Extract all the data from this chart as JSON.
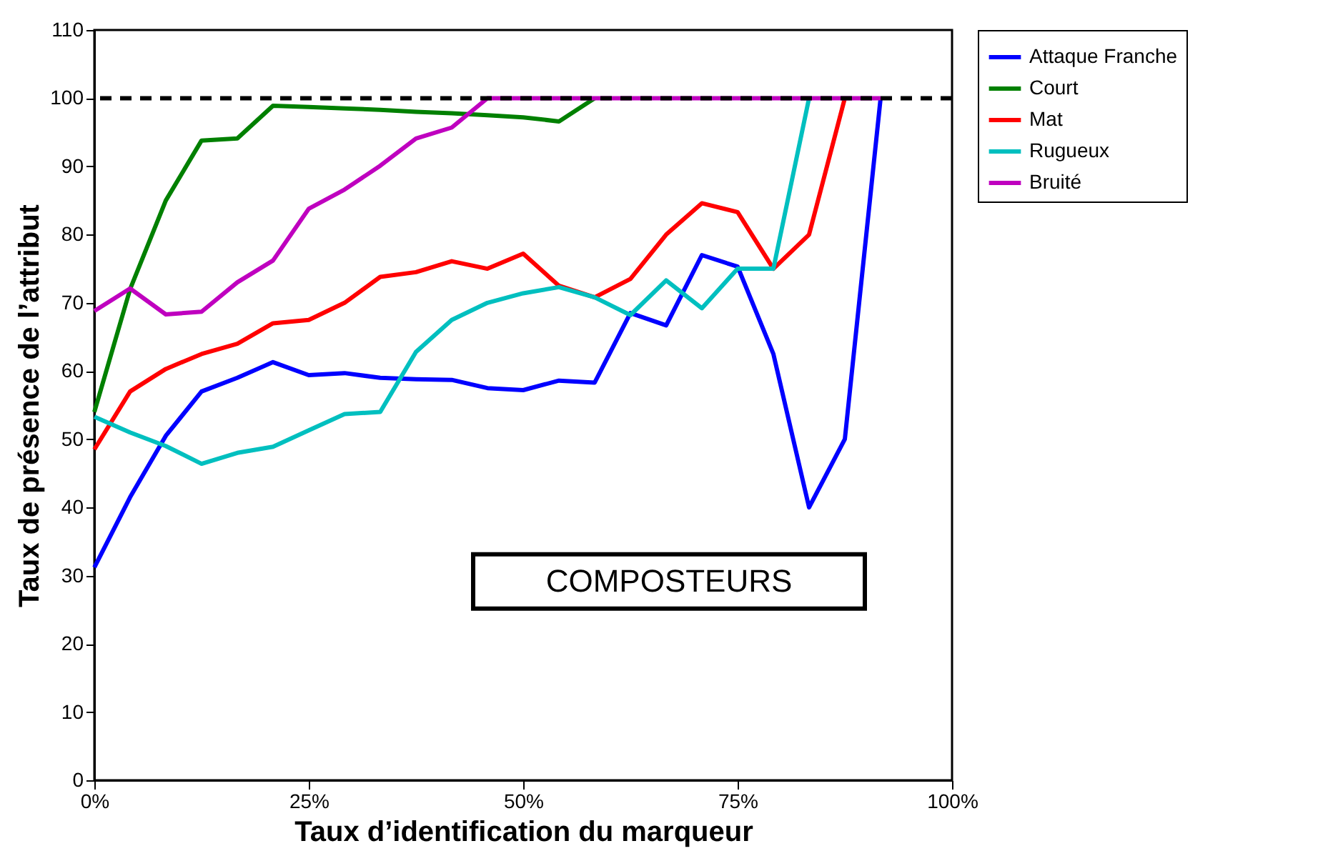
{
  "chart_data": {
    "type": "line",
    "xlabel": "Taux d’identification du marqueur",
    "ylabel": "Taux de présence de l’attribut",
    "x": [
      0,
      4.17,
      8.33,
      12.5,
      16.67,
      20.83,
      25,
      29.17,
      33.33,
      37.5,
      41.67,
      45.83,
      50,
      54.17,
      58.33,
      62.5,
      66.67,
      70.83,
      75,
      79.17,
      83.33,
      87.5,
      91.67
    ],
    "series": [
      {
        "name": "Attaque Franche",
        "color": "#0000ff",
        "values": [
          31.2,
          41.5,
          50.5,
          57,
          59,
          61.3,
          59.4,
          59.7,
          59,
          58.8,
          58.7,
          57.5,
          57.2,
          58.6,
          58.3,
          68.5,
          66.7,
          77,
          75.3,
          62.5,
          40,
          50,
          100
        ]
      },
      {
        "name": "Court",
        "color": "#008000",
        "values": [
          54,
          72,
          85,
          93.8,
          94.1,
          98.9,
          98.7,
          98.5,
          98.3,
          98,
          97.8,
          97.5,
          97.2,
          96.6,
          100,
          null,
          null,
          null,
          null,
          null,
          null,
          null,
          null
        ]
      },
      {
        "name": "Mat",
        "color": "#ff0000",
        "values": [
          48.5,
          57,
          60.3,
          62.5,
          64,
          67,
          67.5,
          70,
          73.8,
          74.5,
          76.1,
          75,
          77.2,
          72.5,
          70.8,
          73.5,
          80,
          84.6,
          83.3,
          75,
          80,
          100,
          null
        ]
      },
      {
        "name": "Rugueux",
        "color": "#00bfbf",
        "values": [
          53.3,
          51,
          49,
          46.4,
          48,
          48.9,
          51.3,
          53.7,
          54,
          62.8,
          67.5,
          70,
          71.4,
          72.3,
          70.8,
          68.2,
          73.3,
          69.2,
          75,
          75,
          100,
          null,
          null
        ]
      },
      {
        "name": "Bruité",
        "color": "#bf00bf",
        "values": [
          68.8,
          72.1,
          68.3,
          68.7,
          73,
          76.2,
          83.8,
          86.6,
          90.1,
          94.1,
          95.7,
          100,
          100,
          100,
          100,
          100,
          100,
          100,
          100,
          100,
          100,
          100,
          100
        ]
      }
    ],
    "xlim": [
      0,
      100
    ],
    "xticks": [
      {
        "value": 0,
        "label": "0%"
      },
      {
        "value": 25,
        "label": "25%"
      },
      {
        "value": 50,
        "label": "50%"
      },
      {
        "value": 75,
        "label": "75%"
      },
      {
        "value": 100,
        "label": "100%"
      }
    ],
    "ylim": [
      0,
      110
    ],
    "yticks": [
      0,
      10,
      20,
      30,
      40,
      50,
      60,
      70,
      80,
      90,
      100,
      110
    ],
    "ref_lines": [
      {
        "axis": "y",
        "value": 100,
        "color": "#000000",
        "line_style": "dashed"
      }
    ],
    "annotations": [
      "COMPOSTEURS"
    ],
    "legend": "right",
    "grid": false
  }
}
